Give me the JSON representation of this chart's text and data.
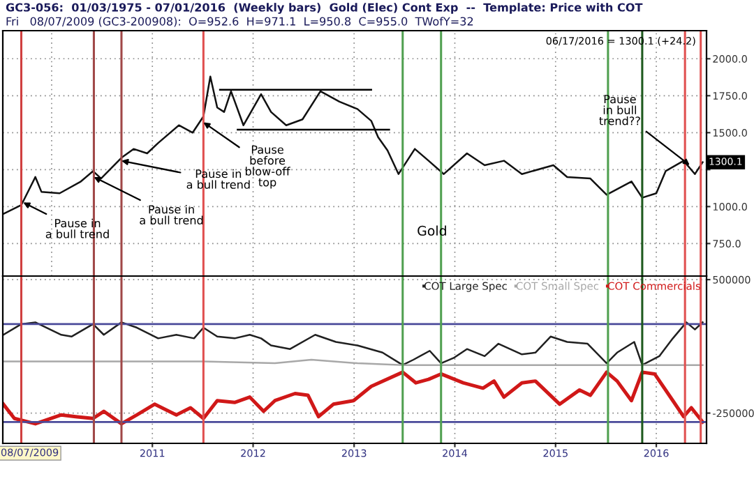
{
  "chart_data": [
    {
      "type": "line",
      "title": "GC3-056:  01/03/1975 - 07/01/2016  (Weekly bars)  Gold (Elec) Cont Exp  --  Template: Price with COT",
      "subtitle": "Fri   08/07/2009 (GC3-200908):  O=952.6  H=971.1  L=950.8  C=955.0  TWofY=32",
      "series": [
        {
          "color": "#111111",
          "x": [
            "2009-07-10",
            "2009-09-13",
            "2009-11-03",
            "2009-11-25",
            "2010-01-30",
            "2010-04-17",
            "2010-05-31",
            "2010-06-29",
            "2010-09-11",
            "2010-10-25",
            "2010-12-13",
            "2011-01-22",
            "2011-04-07",
            "2011-05-27",
            "2011-07-05",
            "2011-07-30",
            "2011-08-24",
            "2011-09-18",
            "2011-10-13",
            "2011-11-27",
            "2012-01-30",
            "2012-03-06",
            "2012-04-30",
            "2012-06-28",
            "2012-09-01",
            "2012-11-09",
            "2013-01-13",
            "2013-03-04",
            "2013-03-29",
            "2013-05-02",
            "2013-06-11",
            "2013-08-09",
            "2013-09-28",
            "2013-11-22",
            "2014-02-14",
            "2014-04-19",
            "2014-06-28",
            "2014-09-01",
            "2014-12-24",
            "2015-02-12",
            "2015-05-07",
            "2015-07-05",
            "2015-10-03",
            "2015-11-11",
            "2016-01-01",
            "2016-02-04",
            "2016-04-09",
            "2016-05-20",
            "2016-06-17"
          ],
          "values": [
            950,
            1010,
            1200,
            1100,
            1090,
            1170,
            1240,
            1190,
            1330,
            1390,
            1360,
            1430,
            1550,
            1500,
            1610,
            1880,
            1670,
            1640,
            1780,
            1550,
            1760,
            1640,
            1550,
            1590,
            1780,
            1710,
            1660,
            1580,
            1470,
            1380,
            1220,
            1390,
            1310,
            1220,
            1360,
            1280,
            1310,
            1220,
            1280,
            1200,
            1190,
            1080,
            1170,
            1060,
            1090,
            1240,
            1310,
            1220,
            1300
          ]
        },
        {
          "color": "#000000",
          "x": [
            "2011-09-03",
            "2013-03-04"
          ],
          "values": [
            1790,
            1790
          ]
        },
        {
          "color": "#000000",
          "x": [
            "2011-11-06",
            "2013-05-08"
          ],
          "values": [
            1520,
            1520
          ]
        }
      ],
      "xlim": [
        "2009-07-08",
        "2016-07-01"
      ],
      "xticks": [
        "2010",
        "2011",
        "2012",
        "2013",
        "2014",
        "2015",
        "2016"
      ],
      "ylim": [
        530,
        2190
      ],
      "yticks": [
        {
          "value": 750,
          "label": "750.0"
        },
        {
          "value": 1000,
          "label": "1000.0"
        },
        {
          "value": 1250,
          "label": null
        },
        {
          "value": 1500,
          "label": "1500.0"
        },
        {
          "value": 1750,
          "label": "1750.0"
        },
        {
          "value": 2000,
          "label": "2000.0"
        }
      ],
      "tick_labels": "y",
      "grid": true,
      "ref_lines": [
        {
          "axis": "x",
          "value": "2009-09-13",
          "color": "#d04040"
        },
        {
          "axis": "x",
          "value": "2010-06-03",
          "color": "#a04848"
        },
        {
          "axis": "x",
          "value": "2010-09-11",
          "color": "#a04848"
        },
        {
          "axis": "x",
          "value": "2011-07-05",
          "color": "#e05050"
        },
        {
          "axis": "x",
          "value": "2013-06-26",
          "color": "#50a050"
        },
        {
          "axis": "x",
          "value": "2013-11-12",
          "color": "#50a050"
        },
        {
          "axis": "x",
          "value": "2015-07-10",
          "color": "#50a050"
        },
        {
          "axis": "x",
          "value": "2015-11-11",
          "color": "#1e5a1e"
        },
        {
          "axis": "x",
          "value": "2016-04-14",
          "color": "#e05050"
        },
        {
          "axis": "x",
          "value": "2016-06-10",
          "color": "#e05050"
        }
      ],
      "annotations": [
        {
          "text": "Pause in\na bull trend",
          "x": "2009-09-20",
          "y": 1028
        },
        {
          "text": "Pause in\na bull trend",
          "x": "2010-06-03",
          "y": 1200
        },
        {
          "text": "Pause in\na bull trend",
          "x": "2010-09-11",
          "y": 1310
        },
        {
          "text": "Pause\nbefore\nblow-off\ntop",
          "x": "2011-07-05",
          "y": 1570
        },
        {
          "text": "Pause\nin bull\ntrend??",
          "x": "2016-05-01",
          "y": 1280
        },
        {
          "text": "1300.1",
          "x": "2016-06-17",
          "y": 1300.1
        },
        "Gold",
        "06/17/2016 = 1300.1 (+24.2)"
      ]
    },
    {
      "type": "line",
      "series": [
        {
          "name": "COT Large Spec",
          "color": "#202020",
          "x": [
            "2009-07-10",
            "2009-09-13",
            "2009-11-03",
            "2010-02-05",
            "2010-03-14",
            "2010-05-31",
            "2010-07-09",
            "2010-09-11",
            "2010-11-06",
            "2011-01-22",
            "2011-03-29",
            "2011-06-01",
            "2011-07-05",
            "2011-08-24",
            "2011-10-26",
            "2011-12-20",
            "2012-01-30",
            "2012-03-06",
            "2012-05-14",
            "2012-08-13",
            "2012-10-27",
            "2013-01-13",
            "2013-04-14",
            "2013-06-26",
            "2013-08-04",
            "2013-10-02",
            "2013-11-12",
            "2013-12-28",
            "2014-02-14",
            "2014-04-19",
            "2014-06-08",
            "2014-09-01",
            "2014-10-20",
            "2014-12-14",
            "2015-02-12",
            "2015-04-27",
            "2015-07-05",
            "2015-08-12",
            "2015-10-13",
            "2015-11-11",
            "2016-01-12",
            "2016-03-01",
            "2016-04-19",
            "2016-05-20",
            "2016-06-17"
          ],
          "values": [
            190000,
            250000,
            260000,
            190000,
            180000,
            250000,
            190000,
            260000,
            230000,
            170000,
            190000,
            170000,
            230000,
            180000,
            170000,
            190000,
            170000,
            130000,
            110000,
            190000,
            150000,
            130000,
            90000,
            20000,
            50000,
            100000,
            30000,
            60000,
            110000,
            70000,
            140000,
            80000,
            90000,
            180000,
            150000,
            140000,
            30000,
            90000,
            150000,
            20000,
            70000,
            170000,
            260000,
            220000,
            260000
          ]
        },
        {
          "name": "COT Small Spec",
          "color": "#a8a8a8",
          "x": [
            "2009-07-10",
            "2010-02-05",
            "2010-11-06",
            "2011-07-05",
            "2012-03-20",
            "2012-07-30",
            "2013-01-13",
            "2013-06-26",
            "2014-02-14",
            "2015-02-22",
            "2015-11-11",
            "2016-06-17"
          ],
          "values": [
            40000,
            40000,
            40000,
            40000,
            30000,
            50000,
            30000,
            20000,
            20000,
            20000,
            20000,
            20000
          ]
        },
        {
          "name": "COT Commercials",
          "color": "#d01818",
          "x": [
            "2009-07-10",
            "2009-08-19",
            "2009-11-03",
            "2010-02-05",
            "2010-03-29",
            "2010-05-31",
            "2010-07-09",
            "2010-09-11",
            "2010-11-06",
            "2011-01-09",
            "2011-03-29",
            "2011-05-19",
            "2011-07-05",
            "2011-08-24",
            "2011-10-26",
            "2011-12-20",
            "2012-02-08",
            "2012-03-20",
            "2012-06-01",
            "2012-07-18",
            "2012-08-25",
            "2012-10-18",
            "2012-12-30",
            "2013-03-04",
            "2013-06-26",
            "2013-08-13",
            "2013-09-28",
            "2013-11-12",
            "2014-01-31",
            "2014-04-13",
            "2014-05-23",
            "2014-06-28",
            "2014-09-01",
            "2014-10-20",
            "2015-01-16",
            "2015-03-29",
            "2015-05-07",
            "2015-07-05",
            "2015-08-12",
            "2015-10-03",
            "2015-11-11",
            "2015-12-26",
            "2016-03-01",
            "2016-04-09",
            "2016-05-07",
            "2016-06-17"
          ],
          "values": [
            -200000,
            -280000,
            -310000,
            -260000,
            -270000,
            -280000,
            -240000,
            -310000,
            -260000,
            -200000,
            -260000,
            -220000,
            -280000,
            -180000,
            -190000,
            -160000,
            -240000,
            -180000,
            -140000,
            -150000,
            -270000,
            -200000,
            -180000,
            -100000,
            -20000,
            -80000,
            -60000,
            -30000,
            -80000,
            -110000,
            -70000,
            -160000,
            -80000,
            -70000,
            -200000,
            -120000,
            -150000,
            -20000,
            -70000,
            -180000,
            -20000,
            -30000,
            -180000,
            -270000,
            -220000,
            -300000
          ]
        }
      ],
      "legend": "top right",
      "xlim": [
        "2009-07-08",
        "2016-07-01"
      ],
      "xticks": [
        "2011",
        "2012",
        "2013",
        "2014",
        "2015",
        "2016"
      ],
      "ylim": [
        -420000,
        520000
      ],
      "yticks": [
        500000,
        -250000
      ],
      "grid": true,
      "ref_lines": [
        {
          "axis": "y",
          "value": 250000,
          "color": "#4a4a9a"
        },
        {
          "axis": "y",
          "value": -300000,
          "color": "#4a4a9a"
        },
        {
          "axis": "x",
          "value": "2009-09-13",
          "color": "#d04040"
        },
        {
          "axis": "x",
          "value": "2010-06-03",
          "color": "#a04848"
        },
        {
          "axis": "x",
          "value": "2010-09-11",
          "color": "#a04848"
        },
        {
          "axis": "x",
          "value": "2011-07-05",
          "color": "#e05050"
        },
        {
          "axis": "x",
          "value": "2013-06-26",
          "color": "#50a050"
        },
        {
          "axis": "x",
          "value": "2013-11-12",
          "color": "#50a050"
        },
        {
          "axis": "x",
          "value": "2015-07-10",
          "color": "#50a050"
        },
        {
          "axis": "x",
          "value": "2015-11-11",
          "color": "#1e5a1e"
        },
        {
          "axis": "x",
          "value": "2016-04-14",
          "color": "#e05050"
        },
        {
          "axis": "x",
          "value": "2016-06-10",
          "color": "#e05050"
        }
      ],
      "annotations": [
        "08/07/2009"
      ]
    }
  ]
}
